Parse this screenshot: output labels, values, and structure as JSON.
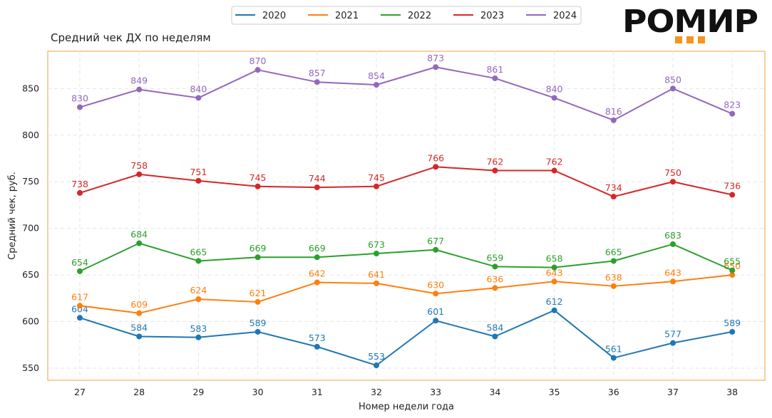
{
  "chart_data": {
    "type": "line",
    "title": "Средний чек ДХ по неделям",
    "xlabel": "Номер недели года",
    "ylabel": "Средний чек, руб.",
    "categories": [
      "27",
      "28",
      "29",
      "30",
      "31",
      "32",
      "33",
      "34",
      "35",
      "36",
      "37",
      "38"
    ],
    "ylim": [
      537,
      890
    ],
    "yticks": [
      550,
      600,
      650,
      700,
      750,
      800,
      850
    ],
    "grid": true,
    "legend_position": "top-center",
    "series": [
      {
        "name": "2020",
        "color": "#1f77b4",
        "values": [
          604,
          584,
          583,
          589,
          573,
          553,
          601,
          584,
          612,
          561,
          577,
          589
        ]
      },
      {
        "name": "2021",
        "color": "#ff7f0e",
        "values": [
          617,
          609,
          624,
          621,
          642,
          641,
          630,
          636,
          643,
          638,
          643,
          650
        ]
      },
      {
        "name": "2022",
        "color": "#2ca02c",
        "values": [
          654,
          684,
          665,
          669,
          669,
          673,
          677,
          659,
          658,
          665,
          683,
          655
        ]
      },
      {
        "name": "2023",
        "color": "#d62728",
        "values": [
          738,
          758,
          751,
          745,
          744,
          745,
          766,
          762,
          762,
          734,
          750,
          736
        ]
      },
      {
        "name": "2024",
        "color": "#9467bd",
        "values": [
          830,
          849,
          840,
          870,
          857,
          854,
          873,
          861,
          840,
          816,
          850,
          823
        ]
      }
    ]
  },
  "logo": {
    "text": "РОМИР",
    "accent_color": "#f7941d"
  },
  "frame_color": "#f0a040"
}
